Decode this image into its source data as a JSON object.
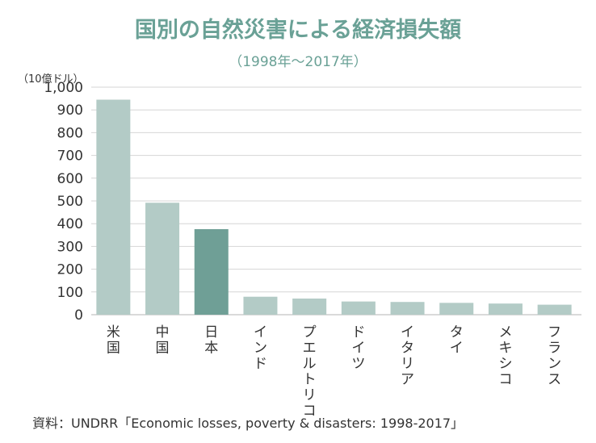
{
  "chart_data": {
    "type": "bar",
    "title": "国別の自然災害による経済損失額",
    "subtitle": "（1998年～2017年）",
    "ylabel": "（10億ドル）",
    "xlabel": "",
    "ylim": [
      0,
      1000
    ],
    "yticks": [
      0,
      100,
      200,
      300,
      400,
      500,
      600,
      700,
      800,
      900,
      1000
    ],
    "ytick_labels": [
      "0",
      "100",
      "200",
      "300",
      "400",
      "500",
      "600",
      "700",
      "800",
      "900",
      "1,000"
    ],
    "categories": [
      "米国",
      "中国",
      "日本",
      "インド",
      "プエルトリコ",
      "ドイツ",
      "イタリア",
      "タイ",
      "メキシコ",
      "フランス"
    ],
    "values": [
      945,
      492,
      376,
      79,
      71,
      58,
      56,
      52,
      49,
      44
    ],
    "highlight_index": 2,
    "grid": true,
    "legend": "none",
    "colors": {
      "bar": "#b3cbc6",
      "highlight": "#6f9f96",
      "title": "#6aa196"
    }
  },
  "source": "資料：UNDRR「Economic losses, poverty & disasters: 1998-2017」"
}
